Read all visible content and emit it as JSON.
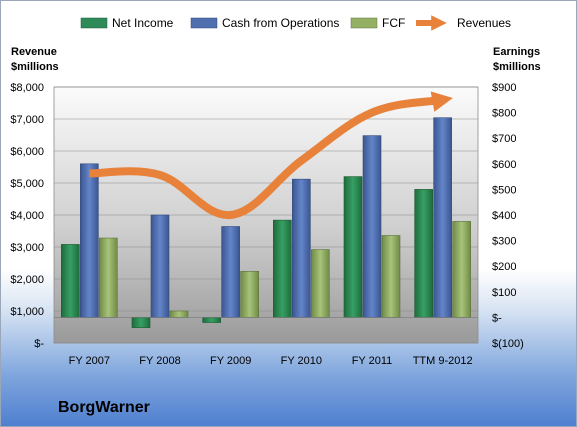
{
  "chart_data": {
    "type": "bar",
    "categories": [
      "FY 2007",
      "FY 2008",
      "FY 2009",
      "FY 2010",
      "FY 2011",
      "TTM 9-2012"
    ],
    "series": [
      {
        "name": "Net Income",
        "axis": "right",
        "type": "bar",
        "color": "#2e8b57",
        "values": [
          285,
          -40,
          -20,
          380,
          550,
          500
        ]
      },
      {
        "name": "Cash from Operations",
        "axis": "right",
        "type": "bar",
        "color": "#4f6fae",
        "values": [
          600,
          400,
          355,
          540,
          710,
          780
        ]
      },
      {
        "name": "FCF",
        "axis": "right",
        "type": "bar",
        "color": "#94b065",
        "values": [
          310,
          25,
          180,
          265,
          320,
          375
        ]
      },
      {
        "name": "Revenues",
        "axis": "left",
        "type": "line",
        "color": "#e8823a",
        "values": [
          5300,
          5250,
          4000,
          5700,
          7200,
          7600
        ]
      }
    ],
    "ylabel": "Revenue $millions",
    "ylabel_lines": [
      "Revenue",
      "$millions"
    ],
    "y2label": "Earnings $millions",
    "y2label_lines": [
      "Earnings",
      "$millions"
    ],
    "ylim": [
      0,
      8000
    ],
    "y2lim": [
      -100,
      900
    ],
    "yticks": [
      "$-",
      "$1,000",
      "$2,000",
      "$3,000",
      "$4,000",
      "$5,000",
      "$6,000",
      "$7,000",
      "$8,000"
    ],
    "y2ticks": [
      "$(100)",
      "$-",
      "$100",
      "$200",
      "$300",
      "$400",
      "$500",
      "$600",
      "$700",
      "$800",
      "$900"
    ],
    "legend_position": "top",
    "grid": true
  },
  "company": "BorgWarner"
}
